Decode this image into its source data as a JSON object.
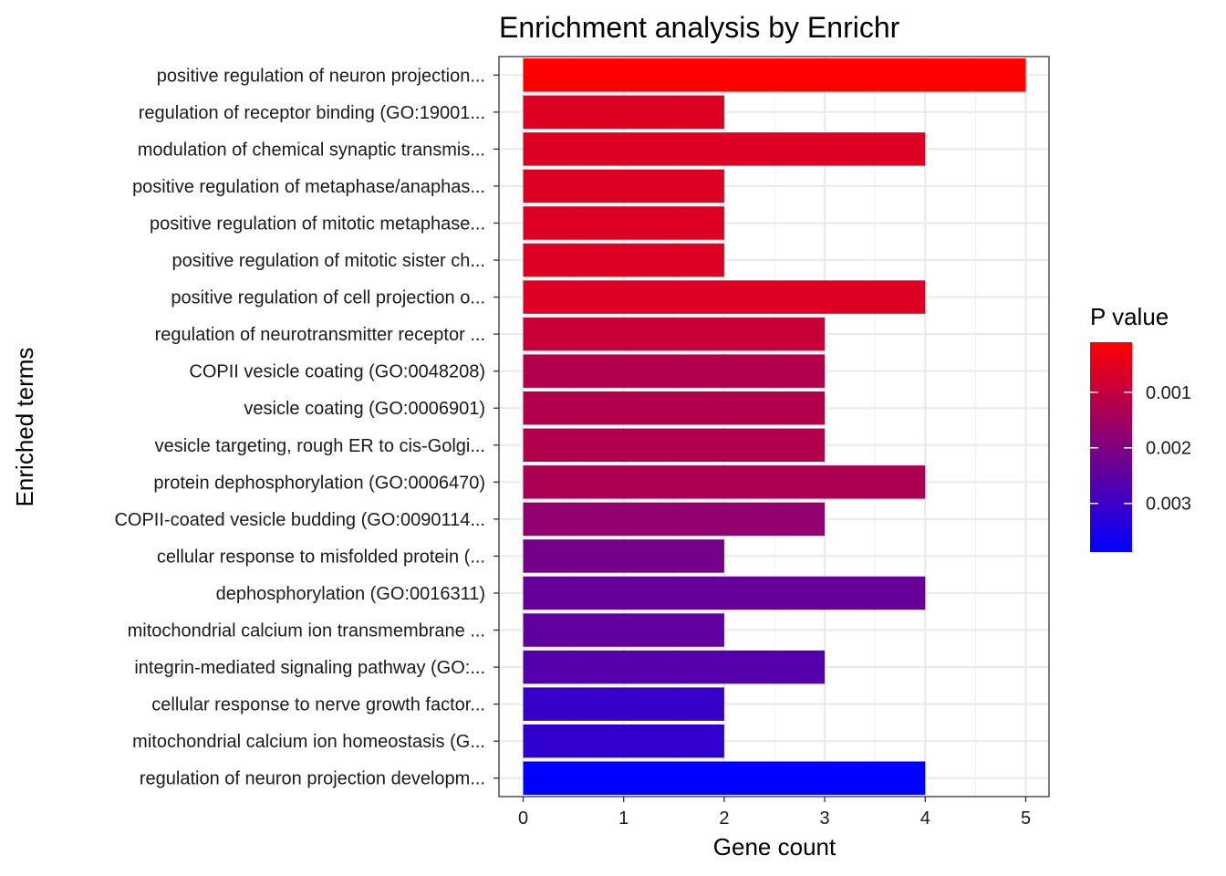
{
  "chart_data": {
    "type": "bar",
    "orientation": "horizontal",
    "title": "Enrichment analysis by Enrichr",
    "xlabel": "Gene count",
    "ylabel": "Enriched terms",
    "xlim": [
      0,
      5.2
    ],
    "xticks": [
      0,
      1,
      2,
      3,
      4,
      5
    ],
    "grid": true,
    "categories": [
      "positive regulation of neuron projection...",
      "regulation of receptor binding (GO:19001...",
      "modulation of chemical synaptic transmis...",
      "positive regulation of metaphase/anaphas...",
      "positive regulation of mitotic metaphase...",
      "positive regulation of mitotic sister ch...",
      "positive regulation of cell projection o...",
      "regulation of neurotransmitter receptor ...",
      "COPII vesicle coating (GO:0048208)",
      "vesicle coating (GO:0006901)",
      "vesicle targeting, rough ER to cis-Golgi...",
      "protein dephosphorylation (GO:0006470)",
      "COPII-coated vesicle budding (GO:0090114...",
      "cellular response to misfolded protein (...",
      "dephosphorylation (GO:0016311)",
      "mitochondrial calcium ion transmembrane ...",
      "integrin-mediated signaling pathway (GO:...",
      "cellular response to nerve growth factor...",
      "mitochondrial calcium ion homeostasis (G...",
      "regulation of neuron projection developm..."
    ],
    "values": [
      5,
      2,
      4,
      2,
      2,
      2,
      4,
      3,
      3,
      3,
      3,
      4,
      3,
      2,
      4,
      2,
      3,
      2,
      2,
      4
    ],
    "p_values": [
      0.0001,
      0.0006,
      0.0006,
      0.0006,
      0.0006,
      0.0006,
      0.0006,
      0.0009,
      0.0012,
      0.0012,
      0.0012,
      0.0013,
      0.0017,
      0.0021,
      0.0023,
      0.0024,
      0.0026,
      0.003,
      0.0031,
      0.0038
    ],
    "color_scale": {
      "title": "P value",
      "low_color": "#ff0000",
      "high_color": "#0000ff",
      "domain": [
        0.0001,
        0.0038
      ],
      "ticks": [
        0.001,
        0.002,
        0.003
      ],
      "tick_labels": [
        "0.001",
        "0.002",
        "0.003"
      ],
      "legend_position": "right"
    }
  }
}
